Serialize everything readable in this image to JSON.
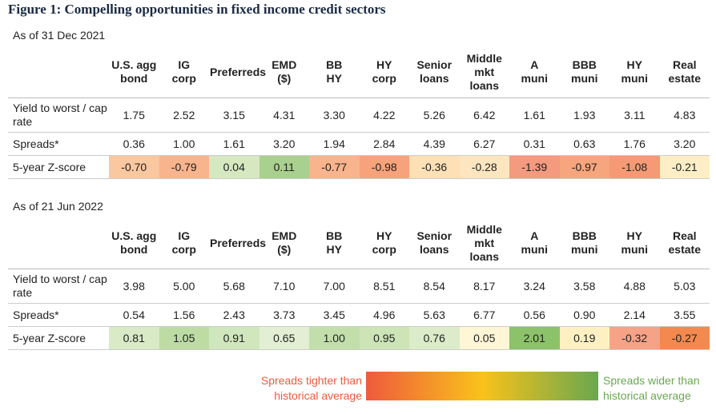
{
  "title": "Figure 1: Compelling opportunities in fixed income credit sectors",
  "tables": [
    {
      "date": "As of 31 Dec 2021",
      "columns": [
        [
          "U.S. agg",
          "bond"
        ],
        [
          "IG",
          "corp"
        ],
        [
          "Preferreds"
        ],
        [
          "EMD",
          "($)"
        ],
        [
          "BB",
          "HY"
        ],
        [
          "HY",
          "corp"
        ],
        [
          "Senior",
          "loans"
        ],
        [
          "Middle",
          "mkt",
          "loans"
        ],
        [
          "A",
          "muni"
        ],
        [
          "BBB",
          "muni"
        ],
        [
          "HY",
          "muni"
        ],
        [
          "Real",
          "estate"
        ]
      ],
      "rows": [
        {
          "label": "Yield to worst / cap rate",
          "values": [
            "1.75",
            "2.52",
            "3.15",
            "4.31",
            "3.30",
            "4.22",
            "5.26",
            "6.42",
            "1.61",
            "1.93",
            "3.11",
            "4.83"
          ]
        },
        {
          "label": "Spreads*",
          "values": [
            "0.36",
            "1.00",
            "1.61",
            "3.20",
            "1.94",
            "2.84",
            "4.39",
            "6.27",
            "0.31",
            "0.63",
            "1.76",
            "3.20"
          ]
        },
        {
          "label": "5-year Z-score",
          "values": [
            "-0.70",
            "-0.79",
            "0.04",
            "0.11",
            "-0.77",
            "-0.98",
            "-0.36",
            "-0.28",
            "-1.39",
            "-0.97",
            "-1.08",
            "-0.21"
          ],
          "colors": [
            "#f9c7a0",
            "#f8b48c",
            "#d5e8c0",
            "#a9d08e",
            "#f8b48c",
            "#f6a27a",
            "#fde0b6",
            "#fde6bf",
            "#f39a7f",
            "#f6a57c",
            "#f59a74",
            "#feeec6"
          ]
        }
      ]
    },
    {
      "date": "As of 21 Jun 2022",
      "columns": [
        [
          "U.S. agg",
          "bond"
        ],
        [
          "IG",
          "corp"
        ],
        [
          "Preferreds"
        ],
        [
          "EMD",
          "($)"
        ],
        [
          "BB",
          "HY"
        ],
        [
          "HY",
          "corp"
        ],
        [
          "Senior",
          "loans"
        ],
        [
          "Middle",
          "mkt",
          "loans"
        ],
        [
          "A",
          "muni"
        ],
        [
          "BBB",
          "muni"
        ],
        [
          "HY",
          "muni"
        ],
        [
          "Real",
          "estate"
        ]
      ],
      "rows": [
        {
          "label": "Yield to worst / cap rate",
          "values": [
            "3.98",
            "5.00",
            "5.68",
            "7.10",
            "7.00",
            "8.51",
            "8.54",
            "8.17",
            "3.24",
            "3.58",
            "4.88",
            "5.03"
          ]
        },
        {
          "label": "Spreads*",
          "values": [
            "0.54",
            "1.56",
            "2.43",
            "3.73",
            "3.45",
            "4.96",
            "5.63",
            "6.77",
            "0.56",
            "0.90",
            "2.14",
            "3.55"
          ]
        },
        {
          "label": "5-year Z-score",
          "values": [
            "0.81",
            "1.05",
            "0.91",
            "0.65",
            "1.00",
            "0.95",
            "0.76",
            "0.05",
            "2.01",
            "0.19",
            "-0.32",
            "-0.27"
          ],
          "colors": [
            "#d8eac6",
            "#bcdca4",
            "#d0e6bc",
            "#e2efd3",
            "#c2dfab",
            "#cce4b6",
            "#dcebc9",
            "#fff6d6",
            "#8cc269",
            "#fff0c2",
            "#f6a287",
            "#f3894f"
          ]
        }
      ]
    }
  ],
  "legend": {
    "low": [
      "Spreads tighter than",
      "historical average"
    ],
    "high": [
      "Spreads wider than",
      "historical average"
    ],
    "low_color": "#ef5a3c",
    "high_color": "#6aa84f",
    "gradient": [
      "#ef5a3c",
      "#f9c21a",
      "#6aa84f"
    ]
  }
}
